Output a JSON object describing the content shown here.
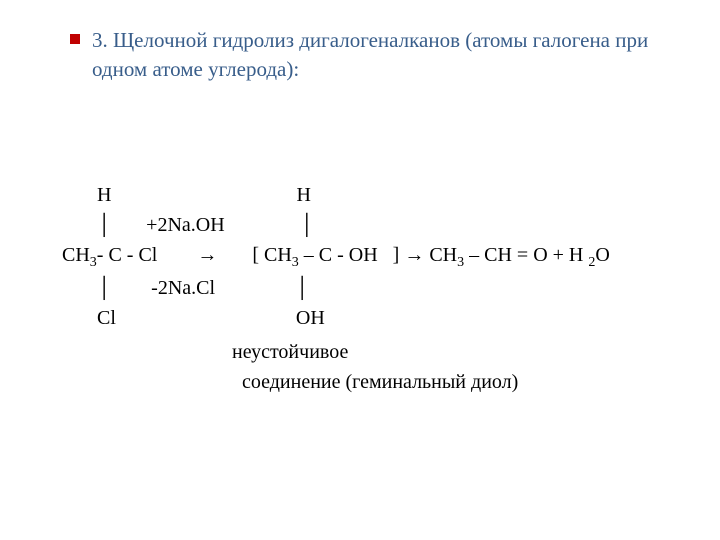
{
  "title_color": "#385d8a",
  "bullet_color": "#c00000",
  "title": "3. Щелочной гидролиз дигалогеналканов (атомы галогена при одном атоме углерода):",
  "reaction": {
    "row1_left": "       Н",
    "row1_right": "                                     Н",
    "row2_left": "       │       +2Na.OH",
    "row2_right": "               │",
    "row3_prefix": "СН",
    "row3_sub1": "3",
    "row3_mid1": "- С - Cl        →       [ СН",
    "row3_sub2": "3",
    "row3_mid2": " – С - ОН   ] → СН",
    "row3_sub3": "3",
    "row3_mid3": " – СН = О + Н ",
    "row3_sub4": "2",
    "row3_end": "О",
    "row4_left": "       │        -2Na.Cl",
    "row4_right": "                │",
    "row5_left": "       Cl",
    "row5_right": "                                    ОН",
    "caption1": "                                  неустойчивое",
    "caption2": "                                    соединение (геминальный диол)"
  }
}
